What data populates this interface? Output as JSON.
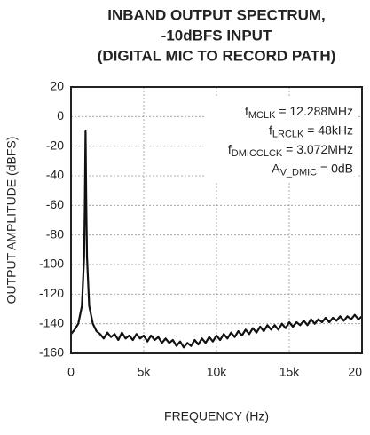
{
  "chart_data": {
    "type": "line",
    "title": [
      "INBAND OUTPUT SPECTRUM,",
      "-10dBFS INPUT",
      "(DIGITAL MIC TO RECORD PATH)"
    ],
    "xlabel": "FREQUENCY (Hz)",
    "ylabel": "OUTPUT AMPLITUDE (dBFS)",
    "annotations": [
      {
        "main": "f",
        "sub": "MCLK",
        "rest": " = 12.288MHz"
      },
      {
        "main": "f",
        "sub": "LRCLK",
        "rest": " = 48kHz"
      },
      {
        "main": "f",
        "sub": "DMICCLCK",
        "rest": " = 3.072MHz"
      },
      {
        "main": "A",
        "sub": "V_DMIC",
        "rest": " = 0dB"
      }
    ],
    "color": "#111111",
    "grid": true,
    "xlim": [
      0,
      20000
    ],
    "ylim": [
      -160,
      20
    ],
    "xticks": [
      0,
      {
        "value": 5000,
        "label": "5k"
      },
      {
        "value": 10000,
        "label": "10k"
      },
      {
        "value": 15000,
        "label": "15k"
      },
      {
        "value": 20000,
        "label": "20"
      }
    ],
    "yticks": [
      20,
      0,
      -20,
      -40,
      -60,
      -80,
      -100,
      -120,
      -140,
      -160
    ],
    "x": [
      0,
      250,
      500,
      750,
      900,
      950,
      1000,
      1050,
      1100,
      1250,
      1500,
      1750,
      2000,
      2250,
      2500,
      2750,
      3000,
      3250,
      3500,
      3750,
      4000,
      4250,
      4500,
      4750,
      5000,
      5250,
      5500,
      5750,
      6000,
      6250,
      6500,
      6750,
      7000,
      7250,
      7500,
      7750,
      8000,
      8250,
      8500,
      8750,
      9000,
      9250,
      9500,
      9750,
      10000,
      10250,
      10500,
      10750,
      11000,
      11250,
      11500,
      11750,
      12000,
      12250,
      12500,
      12750,
      13000,
      13250,
      13500,
      13750,
      14000,
      14250,
      14500,
      14750,
      15000,
      15250,
      15500,
      15750,
      16000,
      16250,
      16500,
      16750,
      17000,
      17250,
      17500,
      17750,
      18000,
      18250,
      18500,
      18750,
      19000,
      19250,
      19500,
      19750,
      20000
    ],
    "values": [
      -147,
      -144,
      -140,
      -128,
      -95,
      -60,
      -10,
      -60,
      -95,
      -128,
      -140,
      -145,
      -147,
      -150,
      -146,
      -149,
      -147,
      -151,
      -146,
      -150,
      -148,
      -151,
      -147,
      -150,
      -148,
      -152,
      -148,
      -151,
      -149,
      -153,
      -150,
      -153,
      -151,
      -155,
      -152,
      -156,
      -153,
      -155,
      -151,
      -154,
      -150,
      -153,
      -149,
      -152,
      -148,
      -151,
      -147,
      -150,
      -146,
      -149,
      -145,
      -148,
      -144,
      -147,
      -143,
      -146,
      -142,
      -145,
      -141,
      -144,
      -141,
      -144,
      -140,
      -143,
      -139,
      -142,
      -139,
      -141,
      -138,
      -141,
      -137,
      -140,
      -137,
      -139,
      -136,
      -139,
      -136,
      -138,
      -135,
      -138,
      -135,
      -137,
      -134,
      -137,
      -135
    ]
  }
}
